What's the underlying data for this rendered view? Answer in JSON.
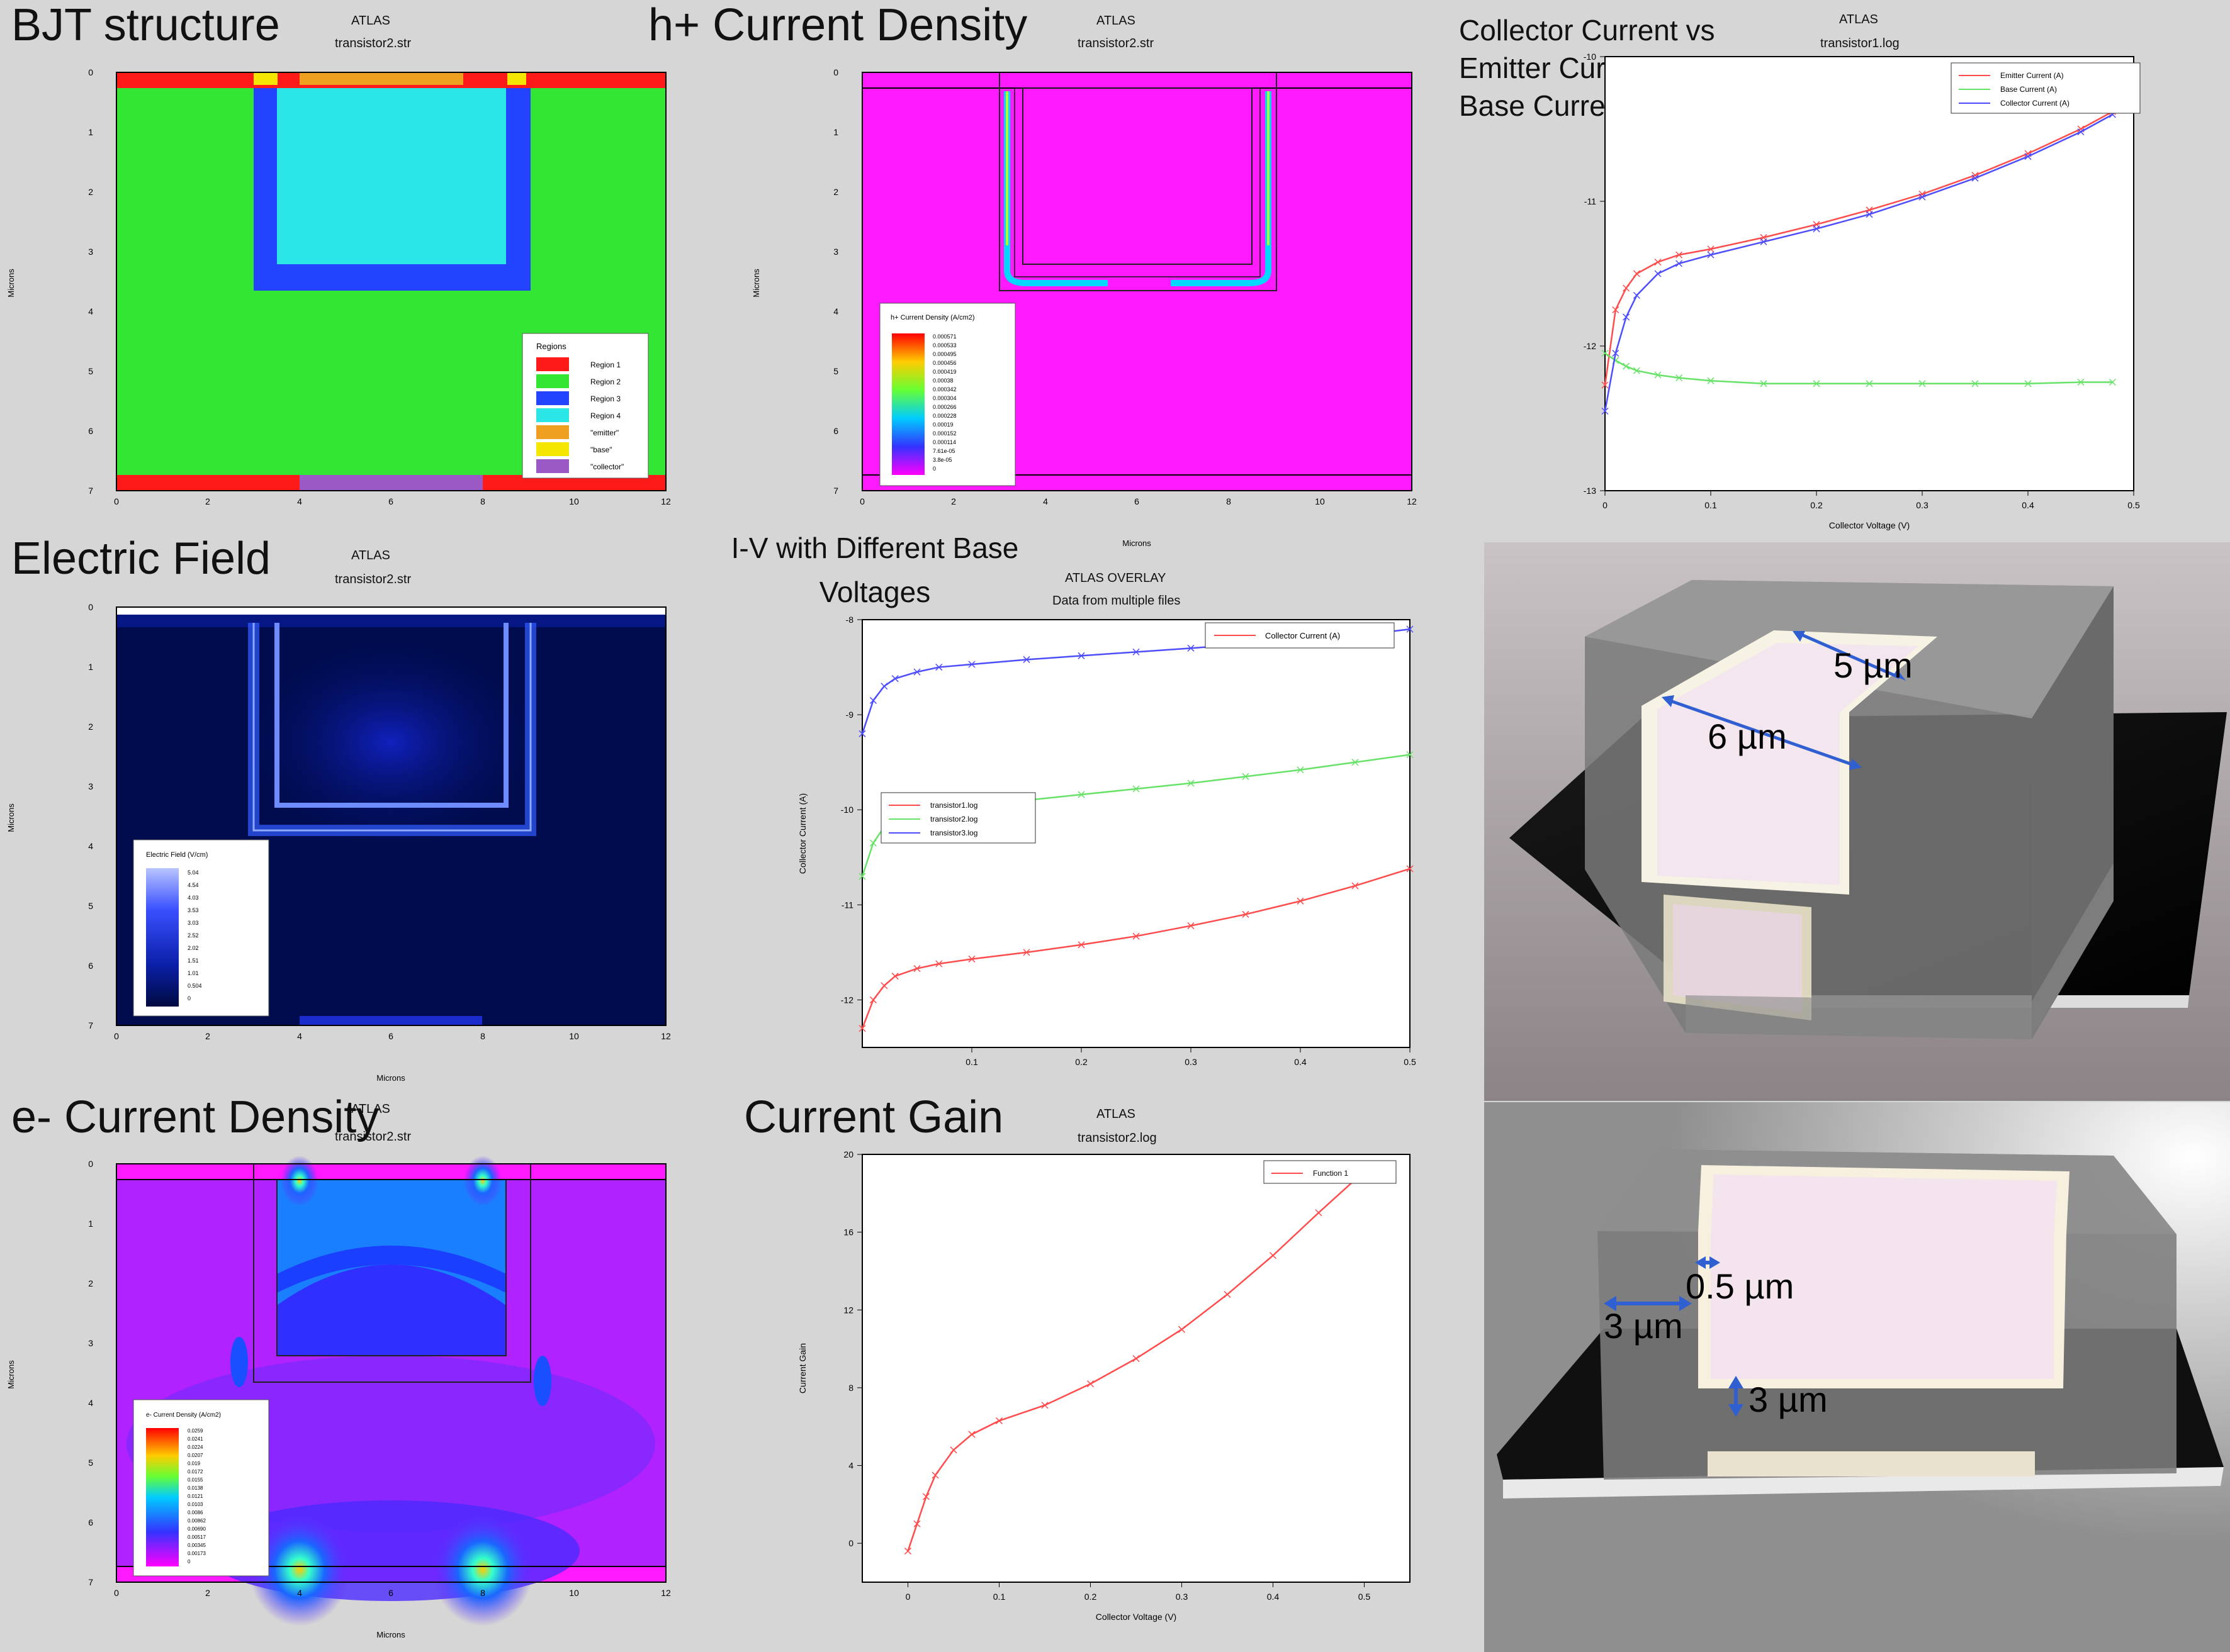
{
  "panels": {
    "bjt": {
      "title": "BJT structure",
      "atlas": "ATLAS",
      "file": "transistor2.str",
      "ylabel": "Microns",
      "legend_title": "Regions",
      "legend": [
        "Region 1",
        "Region 2",
        "Region 3",
        "Region 4",
        "\"emitter\"",
        "\"base\"",
        "\"collector\""
      ],
      "xticks": [
        "0",
        "2",
        "4",
        "6",
        "8",
        "10",
        "12"
      ],
      "yticks": [
        "0",
        "1",
        "2",
        "3",
        "4",
        "5",
        "6",
        "7"
      ]
    },
    "hplus": {
      "title": "h+ Current Density",
      "atlas": "ATLAS",
      "file": "transistor2.str",
      "ylabel": "Microns",
      "xlabel": "Microns",
      "legend_title": "h+ Current Density (A/cm2)",
      "legend": [
        "0.000571",
        "0.000533",
        "0.000495",
        "0.000456",
        "0.000419",
        "0.00038",
        "0.000342",
        "0.000304",
        "0.000266",
        "0.000228",
        "0.00019",
        "0.000152",
        "0.000114",
        "7.61e-05",
        "3.8e-05",
        "0"
      ],
      "xticks": [
        "0",
        "2",
        "4",
        "6",
        "8",
        "10",
        "12"
      ],
      "yticks": [
        "0",
        "1",
        "2",
        "3",
        "4",
        "5",
        "6",
        "7"
      ]
    },
    "efield": {
      "title": "Electric Field",
      "atlas": "ATLAS",
      "file": "transistor2.str",
      "ylabel": "Microns",
      "xlabel": "Microns",
      "legend_title": "Electric Field (V/cm)",
      "legend": [
        "5.04",
        "4.54",
        "4.03",
        "3.53",
        "3.03",
        "2.52",
        "2.02",
        "1.51",
        "1.01",
        "0.504",
        "0"
      ],
      "xticks": [
        "0",
        "2",
        "4",
        "6",
        "8",
        "10",
        "12"
      ],
      "yticks": [
        "0",
        "1",
        "2",
        "3",
        "4",
        "5",
        "6",
        "7"
      ]
    },
    "eminus": {
      "title": "e- Current Density",
      "atlas": "ATLAS",
      "file": "transistor2.str",
      "ylabel": "Microns",
      "xlabel": "Microns",
      "legend_title": "e- Current Density (A/cm2)",
      "legend": [
        "0.0259",
        "0.0241",
        "0.0224",
        "0.0207",
        "0.019",
        "0.0172",
        "0.0155",
        "0.0138",
        "0.0121",
        "0.0103",
        "0.0086",
        "0.00862",
        "0.00690",
        "0.00517",
        "0.00345",
        "0.00173",
        "0"
      ],
      "xticks": [
        "0",
        "2",
        "4",
        "6",
        "8",
        "10",
        "12"
      ],
      "yticks": [
        "0",
        "1",
        "2",
        "3",
        "4",
        "5",
        "6",
        "7"
      ]
    }
  },
  "chart_data": [
    {
      "type": "line",
      "title": "Collector Current vs Emitter Current vs Base Current",
      "atlas": "ATLAS",
      "file": "transistor1.log",
      "xlabel": "Collector Voltage (V)",
      "ylabel": "",
      "xlim": [
        0,
        0.5
      ],
      "ylim": [
        -13,
        -10
      ],
      "xticks": [
        "0",
        "0.1",
        "0.2",
        "0.3",
        "0.4",
        "0.5"
      ],
      "yticks": [
        "-10",
        "-11",
        "-12",
        "-13"
      ],
      "x": [
        0,
        0.01,
        0.02,
        0.03,
        0.05,
        0.07,
        0.1,
        0.15,
        0.2,
        0.25,
        0.3,
        0.35,
        0.4,
        0.45,
        0.48
      ],
      "series": [
        {
          "name": "Emitter Current (A)",
          "color": "#ff4b4b",
          "values": [
            -12.27,
            -11.75,
            -11.6,
            -11.5,
            -11.42,
            -11.37,
            -11.33,
            -11.25,
            -11.16,
            -11.06,
            -10.95,
            -10.82,
            -10.67,
            -10.5,
            -10.38
          ]
        },
        {
          "name": "Base Current (A)",
          "color": "#66e366",
          "values": [
            -12.05,
            -12.1,
            -12.14,
            -12.17,
            -12.2,
            -12.22,
            -12.24,
            -12.26,
            -12.26,
            -12.26,
            -12.26,
            -12.26,
            -12.26,
            -12.25,
            -12.25
          ]
        },
        {
          "name": "Collector Current (A)",
          "color": "#4d4dff",
          "values": [
            -12.45,
            -12.05,
            -11.8,
            -11.65,
            -11.5,
            -11.43,
            -11.37,
            -11.28,
            -11.19,
            -11.09,
            -10.97,
            -10.84,
            -10.69,
            -10.52,
            -10.4
          ]
        }
      ]
    },
    {
      "type": "line",
      "title": "I-V with Different Base Voltages",
      "atlas": "ATLAS OVERLAY",
      "file": "Data from multiple files",
      "xlabel": "",
      "ylabel": "Collector Current (A)",
      "xlim": [
        0,
        0.5
      ],
      "ylim": [
        -12.5,
        -8
      ],
      "xticks": [
        "0.1",
        "0.2",
        "0.3",
        "0.4",
        "0.5"
      ],
      "yticks": [
        "-8",
        "-9",
        "-10",
        "-11",
        "-12"
      ],
      "top_legend": "Collector Current (A)",
      "x": [
        0,
        0.01,
        0.02,
        0.03,
        0.05,
        0.07,
        0.1,
        0.15,
        0.2,
        0.25,
        0.3,
        0.35,
        0.4,
        0.45,
        0.5
      ],
      "series": [
        {
          "name": "transistor1.log",
          "color": "#ff4b4b",
          "values": [
            -12.3,
            -12.0,
            -11.85,
            -11.75,
            -11.67,
            -11.62,
            -11.57,
            -11.5,
            -11.42,
            -11.33,
            -11.22,
            -11.1,
            -10.96,
            -10.8,
            -10.62
          ]
        },
        {
          "name": "transistor2.log",
          "color": "#66e366",
          "values": [
            -10.7,
            -10.35,
            -10.18,
            -10.1,
            -10.04,
            -10.0,
            -9.96,
            -9.9,
            -9.84,
            -9.78,
            -9.72,
            -9.65,
            -9.58,
            -9.5,
            -9.42
          ]
        },
        {
          "name": "transistor3.log",
          "color": "#4d4dff",
          "values": [
            -9.2,
            -8.85,
            -8.7,
            -8.62,
            -8.55,
            -8.5,
            -8.47,
            -8.42,
            -8.38,
            -8.34,
            -8.3,
            -8.26,
            -8.22,
            -8.17,
            -8.1
          ]
        }
      ]
    },
    {
      "type": "line",
      "title": "Current Gain",
      "atlas": "ATLAS",
      "file": "transistor2.log",
      "xlabel": "Collector Voltage (V)",
      "ylabel": "Current Gain",
      "xlim": [
        -0.05,
        0.55
      ],
      "ylim": [
        -2,
        20
      ],
      "xticks": [
        "0",
        "0.1",
        "0.2",
        "0.3",
        "0.4",
        "0.5"
      ],
      "yticks": [
        "0",
        "4",
        "8",
        "12",
        "16",
        "20"
      ],
      "x": [
        0,
        0.01,
        0.02,
        0.03,
        0.05,
        0.07,
        0.1,
        0.15,
        0.2,
        0.25,
        0.3,
        0.35,
        0.4,
        0.45,
        0.49
      ],
      "series": [
        {
          "name": "Function 1",
          "color": "#ff4b4b",
          "values": [
            -0.4,
            1.0,
            2.4,
            3.5,
            4.8,
            5.6,
            6.3,
            7.1,
            8.2,
            9.5,
            11.0,
            12.8,
            14.8,
            17.0,
            18.7
          ]
        }
      ]
    }
  ],
  "render": {
    "label_5um": "5 µm",
    "label_6um": "6 µm",
    "label_05um": "0.5 µm",
    "label_3um_a": "3 µm",
    "label_3um_b": "3 µm"
  }
}
